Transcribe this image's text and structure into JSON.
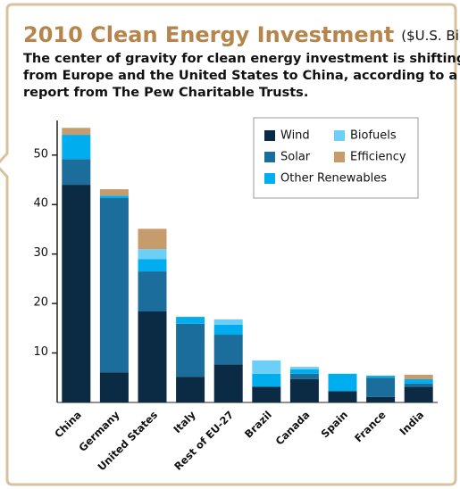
{
  "chart_data": {
    "type": "stacked_bar",
    "title": "2010 Clean Energy Investment",
    "subtitle": "($U.S. Billions)",
    "description": [
      "The center of gravity for clean energy investment is shifting",
      "from Europe and the United States to China, according to a",
      "report from The Pew Charitable Trusts."
    ],
    "categories": [
      "China",
      "Germany",
      "United States",
      "Italy",
      "Rest of EU-27",
      "Brazil",
      "Canada",
      "Spain",
      "France",
      "India"
    ],
    "series": [
      {
        "name": "Wind",
        "color": "#0b2b45",
        "values": [
          44.0,
          6.1,
          18.4,
          5.2,
          7.7,
          3.2,
          4.7,
          2.3,
          1.1,
          3.2
        ]
      },
      {
        "name": "Solar",
        "color": "#1b6d9b",
        "values": [
          5.2,
          35.2,
          8.1,
          10.7,
          6.0,
          0,
          1.1,
          0,
          3.9,
          0.6
        ]
      },
      {
        "name": "Other Renewables",
        "color": "#00aeef",
        "values": [
          4.9,
          0.5,
          2.5,
          1.4,
          2.0,
          2.6,
          0.9,
          3.5,
          0.4,
          0.9
        ]
      },
      {
        "name": "Biofuels",
        "color": "#6dcff6",
        "values": [
          0,
          0,
          2.0,
          0,
          1.1,
          2.7,
          0.5,
          0,
          0,
          0
        ]
      },
      {
        "name": "Efficiency",
        "color": "#c69c6d",
        "values": [
          1.4,
          1.3,
          4.1,
          0,
          0,
          0,
          0,
          0,
          0,
          0.9
        ]
      }
    ],
    "ylim": [
      0,
      57
    ],
    "yticks": [
      10,
      20,
      30,
      40,
      50
    ],
    "grid": false
  }
}
